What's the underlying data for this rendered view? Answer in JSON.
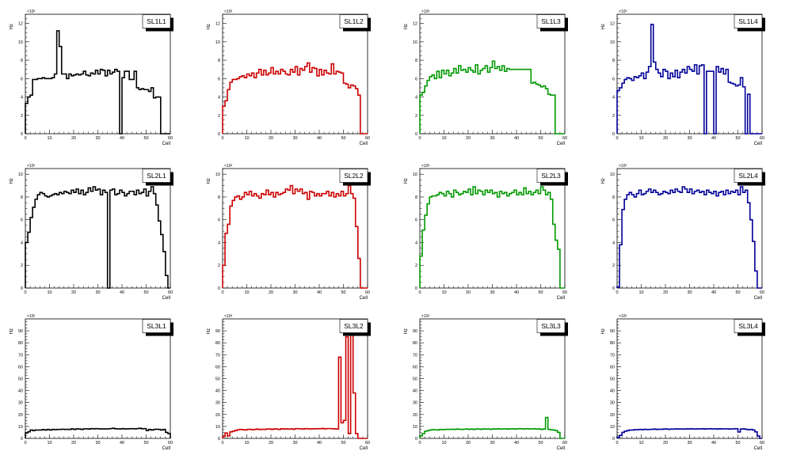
{
  "chart_data": [
    {
      "type": "step",
      "legend": "SL1L1",
      "ylabel": "Hz",
      "xlabel": "Cell",
      "yscale_label": "×10³",
      "xlim": [
        0,
        60
      ],
      "ylim": [
        0,
        13
      ],
      "yticks": [
        0,
        2,
        4,
        6,
        8,
        10,
        12
      ],
      "xticks": [
        0,
        10,
        20,
        30,
        40,
        50,
        60
      ],
      "color": "#000000",
      "values": [
        3.3,
        4,
        4.2,
        5.9,
        5.9,
        6,
        6,
        6.1,
        6,
        6,
        6,
        6.1,
        6.5,
        11.2,
        9.5,
        6.5,
        6.5,
        6,
        6.5,
        6.3,
        6.4,
        6.5,
        6.4,
        6.5,
        6.8,
        6.4,
        6.3,
        6.6,
        6.5,
        6.9,
        6.5,
        7,
        6.9,
        6.3,
        6.9,
        6.5,
        6.7,
        7,
        6.8,
        0,
        6.1,
        6.8,
        6.8,
        5.9,
        5.9,
        6.8,
        5,
        4.8,
        4.9,
        4.8,
        4.8,
        4.6,
        5,
        3.9,
        4,
        4,
        0,
        0,
        0,
        0
      ]
    },
    {
      "type": "step",
      "legend": "SL1L2",
      "ylabel": "Hz",
      "xlabel": "Cell",
      "yscale_label": "×10³",
      "xlim": [
        0,
        60
      ],
      "ylim": [
        0,
        13
      ],
      "yticks": [
        0,
        2,
        4,
        6,
        8,
        10,
        12
      ],
      "xticks": [
        0,
        10,
        20,
        30,
        40,
        50,
        60
      ],
      "color": "#cc0000",
      "values": [
        3,
        3.6,
        4.8,
        5.6,
        5.9,
        5.9,
        6,
        6.2,
        6.3,
        6.1,
        6.5,
        6.3,
        6.6,
        6.1,
        6.6,
        7,
        6.4,
        6.9,
        6.4,
        6.6,
        7.2,
        6.5,
        6.8,
        6.5,
        7,
        6.8,
        6.5,
        6.4,
        7,
        6.7,
        7.3,
        6.4,
        7.1,
        6.9,
        7.3,
        7.7,
        6.7,
        7.2,
        7.1,
        6.3,
        7,
        6.4,
        6.9,
        6.6,
        6.5,
        7.6,
        6.5,
        6.8,
        6.7,
        6.6,
        5.5,
        5.4,
        5,
        5.3,
        5.2,
        4.9,
        4.2,
        0,
        0,
        0
      ]
    },
    {
      "type": "step",
      "legend": "SL1L3",
      "ylabel": "Hz",
      "xlabel": "Cell",
      "yscale_label": "×10³",
      "xlim": [
        0,
        60
      ],
      "ylim": [
        0,
        13
      ],
      "yticks": [
        0,
        2,
        4,
        6,
        8,
        10,
        12
      ],
      "xticks": [
        0,
        10,
        20,
        30,
        40,
        50,
        60
      ],
      "color": "#009900",
      "values": [
        4.2,
        4.5,
        5.2,
        5.8,
        6.2,
        6.4,
        6,
        6.8,
        6.1,
        6.9,
        6.5,
        6.9,
        6.3,
        6.6,
        7.1,
        6.6,
        7.4,
        6.9,
        7,
        6.7,
        7.2,
        6.9,
        6.7,
        7.5,
        6.5,
        6.9,
        7.1,
        7.4,
        6.7,
        7.2,
        7.9,
        7.1,
        7.3,
        6.9,
        7.4,
        6.8,
        7.1,
        7,
        7,
        7,
        7,
        7,
        7,
        7,
        7,
        7,
        5.5,
        5.6,
        5.4,
        5.3,
        5.1,
        5.2,
        4.9,
        4.3,
        4.2,
        4.2,
        0,
        0,
        0,
        0
      ]
    },
    {
      "type": "step",
      "legend": "SL1L4",
      "ylabel": "Hz",
      "xlabel": "Cell",
      "yscale_label": "×10³",
      "xlim": [
        0,
        60
      ],
      "ylim": [
        0,
        13
      ],
      "yticks": [
        0,
        2,
        4,
        6,
        8,
        10,
        12
      ],
      "xticks": [
        0,
        10,
        20,
        30,
        40,
        50,
        60
      ],
      "color": "#000099",
      "values": [
        4.7,
        5,
        5.5,
        5.9,
        6.1,
        6,
        5.8,
        6.2,
        6.1,
        6.3,
        6.6,
        6,
        6.7,
        7.3,
        11.9,
        7.8,
        7,
        6.6,
        6.2,
        7,
        6.8,
        6,
        6.6,
        6.2,
        6.9,
        6.1,
        6.7,
        7,
        6.6,
        7.3,
        7,
        6.8,
        7.5,
        6.5,
        7.4,
        7.5,
        0,
        6.8,
        6.8,
        6.8,
        0,
        7.3,
        6.7,
        7.1,
        6.5,
        7,
        5.6,
        5.5,
        5.4,
        5.2,
        5.3,
        6.1,
        5.1,
        0,
        4.3,
        0,
        0,
        0,
        0,
        0
      ]
    },
    {
      "type": "step",
      "legend": "SL2L1",
      "ylabel": "Hz",
      "xlabel": "Cell",
      "yscale_label": "×10³",
      "xlim": [
        0,
        60
      ],
      "ylim": [
        0,
        10.5
      ],
      "yticks": [
        0,
        2,
        4,
        6,
        8,
        10
      ],
      "xticks": [
        0,
        10,
        20,
        30,
        40,
        50,
        60
      ],
      "color": "#000000",
      "values": [
        4,
        4.9,
        6.2,
        7.1,
        7.8,
        8.2,
        8.4,
        8.3,
        8.1,
        8,
        8.1,
        8.2,
        8.3,
        8.2,
        8.4,
        8.3,
        8.5,
        8.4,
        8.3,
        8.6,
        8.4,
        8.7,
        8.3,
        8.6,
        8.2,
        8.4,
        8.8,
        8.5,
        8.9,
        8.6,
        8.7,
        8.2,
        8.6,
        8.4,
        0,
        8.6,
        8.7,
        8.2,
        8.3,
        8.6,
        8.4,
        8.1,
        8.3,
        8.5,
        8.5,
        8.2,
        8.6,
        8.3,
        8.4,
        8.7,
        8.1,
        8.5,
        8.9,
        8.3,
        7.3,
        5.9,
        4.7,
        3.2,
        1.1,
        0
      ]
    },
    {
      "type": "step",
      "legend": "SL2L2",
      "ylabel": "Hz",
      "xlabel": "Cell",
      "yscale_label": "×10³",
      "xlim": [
        0,
        60
      ],
      "ylim": [
        0,
        10.5
      ],
      "yticks": [
        0,
        2,
        4,
        6,
        8,
        10
      ],
      "xticks": [
        0,
        10,
        20,
        30,
        40,
        50,
        60
      ],
      "color": "#cc0000",
      "values": [
        2,
        4.8,
        5.6,
        7.2,
        7.7,
        8,
        8.1,
        7.8,
        8,
        8.4,
        8.2,
        8.5,
        8.1,
        8.3,
        8.1,
        7.9,
        8.3,
        8.2,
        8.6,
        8.2,
        8.4,
        8,
        8.4,
        8.2,
        8.3,
        8.4,
        8.7,
        8.6,
        9,
        8.3,
        8.7,
        8.5,
        8.7,
        8.3,
        8.4,
        7.8,
        8.5,
        8.4,
        8.1,
        8.3,
        8.1,
        8.3,
        8.3,
        8.5,
        8.1,
        8.4,
        8,
        8.3,
        8.1,
        8.5,
        8.1,
        8.3,
        9,
        8.3,
        7.9,
        5.4,
        2.6,
        0,
        0,
        0
      ]
    },
    {
      "type": "step",
      "legend": "SL2L3",
      "ylabel": "Hz",
      "xlabel": "Cell",
      "yscale_label": "×10³",
      "xlim": [
        0,
        60
      ],
      "ylim": [
        0,
        10.5
      ],
      "yticks": [
        0,
        2,
        4,
        6,
        8,
        10
      ],
      "xticks": [
        0,
        10,
        20,
        30,
        40,
        50,
        60
      ],
      "color": "#009900",
      "values": [
        2.8,
        5.1,
        6.4,
        7.4,
        8,
        8.1,
        8.1,
        8.2,
        8.4,
        8.3,
        8.1,
        8.5,
        8.3,
        8,
        8.6,
        8.4,
        8.2,
        8.3,
        8.5,
        8.4,
        8.7,
        8.2,
        8.9,
        8.3,
        8.6,
        8.5,
        8.2,
        8.6,
        8.4,
        8.6,
        8.3,
        8.4,
        8,
        8.5,
        8.3,
        8.4,
        8.1,
        8.3,
        8.4,
        8.6,
        8.2,
        8.4,
        8.2,
        8.8,
        8.3,
        8.5,
        8.2,
        8.4,
        8.6,
        8.3,
        8.9,
        8.6,
        8.2,
        8.4,
        7.8,
        5.6,
        4.2,
        3.4,
        0,
        0
      ]
    },
    {
      "type": "step",
      "legend": "SL2L4",
      "ylabel": "Hz",
      "xlabel": "Cell",
      "yscale_label": "×10³",
      "xlim": [
        0,
        60
      ],
      "ylim": [
        0,
        10.5
      ],
      "yticks": [
        0,
        2,
        4,
        6,
        8,
        10
      ],
      "xticks": [
        0,
        10,
        20,
        30,
        40,
        50,
        60
      ],
      "color": "#000099",
      "values": [
        0.1,
        3.8,
        6.9,
        7.8,
        8.2,
        8.4,
        8.2,
        8,
        8.3,
        8.6,
        8.2,
        8.3,
        8.5,
        8.7,
        8.4,
        8.6,
        8.4,
        8.2,
        8.3,
        8.5,
        8.4,
        8.3,
        8.6,
        8.4,
        8.7,
        8.5,
        8.4,
        8.9,
        8.7,
        8.4,
        8.7,
        8.3,
        8.5,
        8.6,
        8.4,
        8.5,
        8.2,
        8.6,
        8.4,
        8.3,
        8.5,
        8.1,
        8.4,
        8.5,
        8.2,
        8.6,
        8.3,
        8.5,
        8.4,
        8.6,
        8.2,
        8.9,
        8.4,
        8.6,
        7.5,
        6,
        4.1,
        1.5,
        0,
        0
      ]
    },
    {
      "type": "step",
      "legend": "SL3L1",
      "ylabel": "Hz",
      "xlabel": "Cell",
      "yscale_label": "×10³",
      "xlim": [
        0,
        60
      ],
      "ylim": [
        0,
        100
      ],
      "yticks": [
        0,
        10,
        20,
        30,
        40,
        50,
        60,
        70,
        80,
        90
      ],
      "xticks": [
        0,
        10,
        20,
        30,
        40,
        50,
        60
      ],
      "color": "#000000",
      "values": [
        4.6,
        5.5,
        7,
        6.5,
        7,
        7,
        7,
        7.4,
        7,
        7.5,
        7,
        7.5,
        7.3,
        7.5,
        7.5,
        7.7,
        7.5,
        7.6,
        7.5,
        8,
        7.5,
        8,
        7.8,
        7.5,
        8,
        8,
        7.8,
        8.2,
        8,
        8.2,
        8,
        7.9,
        8,
        7.9,
        8,
        8.2,
        8.5,
        8.1,
        8,
        7.9,
        8.2,
        7.9,
        8,
        8.1,
        8.2,
        8,
        8.2,
        8.5,
        8.1,
        8.2,
        6.6,
        7.5,
        7,
        7.5,
        7.7,
        7.5,
        7,
        7.5,
        5,
        4
      ]
    },
    {
      "type": "step",
      "legend": "SL3L2",
      "ylabel": "Hz",
      "xlabel": "Cell",
      "yscale_label": "×10³",
      "xlim": [
        0,
        60
      ],
      "ylim": [
        0,
        100
      ],
      "yticks": [
        0,
        10,
        20,
        30,
        40,
        50,
        60,
        70,
        80,
        90
      ],
      "xticks": [
        0,
        10,
        20,
        30,
        40,
        50,
        60
      ],
      "color": "#cc0000",
      "values": [
        1.5,
        4.5,
        2.1,
        5.4,
        6,
        6.6,
        7.2,
        7.5,
        7.3,
        7,
        7.5,
        7.6,
        7.2,
        7.5,
        7.8,
        7.4,
        7.6,
        7.5,
        7.8,
        7.9,
        7.5,
        8,
        7.8,
        7.5,
        8.1,
        7.8,
        8,
        7.7,
        8,
        7.6,
        8.2,
        8.1,
        8,
        7.8,
        8.2,
        8,
        7.9,
        8.1,
        8,
        8.2,
        8.1,
        8.3,
        8,
        8.2,
        8.2,
        8.1,
        8,
        7.8,
        68,
        13,
        15,
        85,
        4,
        93,
        38,
        4,
        0,
        0,
        0,
        0
      ]
    },
    {
      "type": "step",
      "legend": "SL3L3",
      "ylabel": "Hz",
      "xlabel": "Cell",
      "yscale_label": "×10³",
      "xlim": [
        0,
        60
      ],
      "ylim": [
        0,
        100
      ],
      "yticks": [
        0,
        10,
        20,
        30,
        40,
        50,
        60,
        70,
        80,
        90
      ],
      "xticks": [
        0,
        10,
        20,
        30,
        40,
        50,
        60
      ],
      "color": "#009900",
      "values": [
        2,
        4,
        6,
        6.5,
        7,
        7.3,
        7.2,
        7,
        7.5,
        7.3,
        7.5,
        7.6,
        7.5,
        7.7,
        7.5,
        7.8,
        7.6,
        7.5,
        7.7,
        7.9,
        7.6,
        7.8,
        7.5,
        7.9,
        7.8,
        7.6,
        8,
        7.7,
        7.9,
        7.6,
        8,
        7.8,
        8.1,
        7.7,
        7.9,
        8,
        7.8,
        8,
        8.1,
        7.8,
        8,
        8.2,
        7.9,
        8,
        8.1,
        7.9,
        8,
        8.1,
        7.8,
        8,
        7.5,
        7.8,
        17.5,
        7.5,
        7.2,
        7,
        6.5,
        5,
        0,
        0
      ]
    },
    {
      "type": "step",
      "legend": "SL3L4",
      "ylabel": "Hz",
      "xlabel": "Cell",
      "yscale_label": "×10³",
      "xlim": [
        0,
        60
      ],
      "ylim": [
        0,
        100
      ],
      "yticks": [
        0,
        10,
        20,
        30,
        40,
        50,
        60,
        70,
        80,
        90
      ],
      "xticks": [
        0,
        10,
        20,
        30,
        40,
        50,
        60
      ],
      "color": "#000099",
      "values": [
        1,
        2.5,
        5,
        6,
        6.5,
        7,
        7,
        7.3,
        7.2,
        7.5,
        7.3,
        7.6,
        7.4,
        7.5,
        7.6,
        7.8,
        7.5,
        7.7,
        7.6,
        7.8,
        7.9,
        7.6,
        7.8,
        7.7,
        8,
        7.8,
        7.9,
        7.7,
        8,
        7.8,
        8.1,
        7.9,
        7.8,
        8,
        7.9,
        8.1,
        7.8,
        8,
        8.1,
        7.9,
        8,
        7.8,
        8.1,
        7.9,
        8,
        8,
        7.8,
        7.9,
        8,
        8.1,
        5.3,
        7.8,
        8,
        7.6,
        7.2,
        7.5,
        7,
        5.5,
        2,
        0
      ]
    }
  ]
}
